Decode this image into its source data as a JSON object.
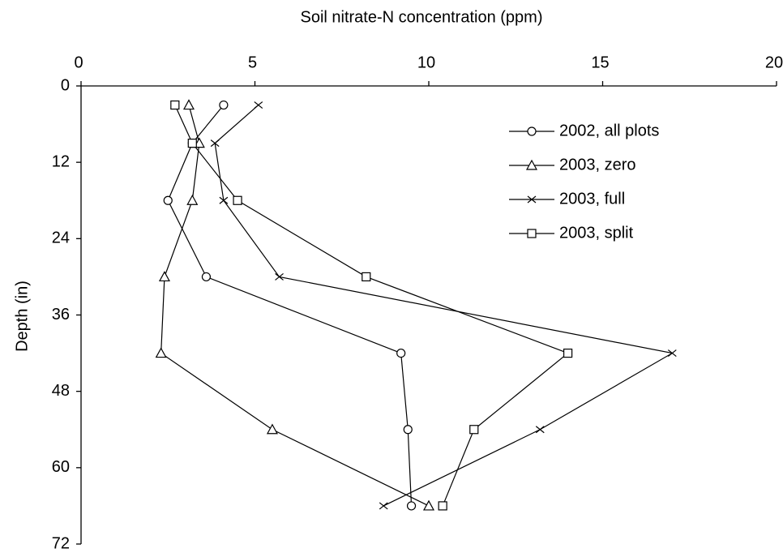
{
  "chart_data": {
    "type": "line",
    "x_label": "Soil nitrate-N concentration (ppm)",
    "y_label": "Depth (in)",
    "y": [
      3,
      9,
      18,
      30,
      42,
      54,
      66
    ],
    "xlim": [
      0,
      20
    ],
    "xticks": [
      0,
      5,
      10,
      15,
      20
    ],
    "ylim": [
      0,
      72
    ],
    "yticks": [
      0,
      12,
      24,
      36,
      48,
      60,
      72
    ],
    "y_inverted": true,
    "x_axis_position": "top",
    "grid": false,
    "legend": "upper right",
    "series": [
      {
        "name": "2002, all plots",
        "color": "#000000",
        "marker": "circle",
        "values": [
          4.1,
          3.2,
          2.5,
          3.6,
          9.2,
          9.4,
          9.5
        ]
      },
      {
        "name": "2003, zero",
        "color": "#000000",
        "marker": "triangle",
        "values": [
          3.1,
          3.4,
          3.2,
          2.4,
          2.3,
          5.5,
          10.0
        ]
      },
      {
        "name": "2003, full",
        "color": "#000000",
        "marker": "x",
        "values": [
          5.1,
          3.85,
          4.1,
          5.7,
          17.0,
          13.2,
          8.7
        ]
      },
      {
        "name": "2003, split",
        "color": "#000000",
        "marker": "square",
        "values": [
          2.7,
          3.2,
          4.5,
          8.2,
          14.0,
          11.3,
          10.4
        ]
      }
    ]
  }
}
